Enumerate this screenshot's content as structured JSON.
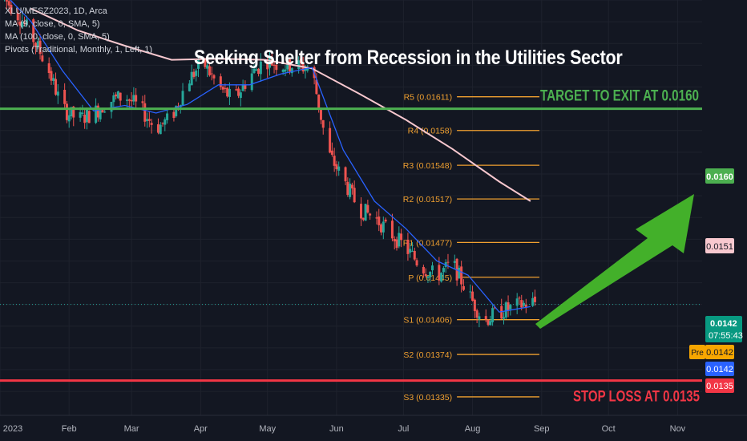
{
  "legend": {
    "symbol_line": "XLU/MESZ2023, 1D, Arca",
    "ma_fast": "MA (9, close, 0, SMA, 5)",
    "ma_slow": "MA (100, close, 0, SMA, 5)",
    "pivots": "Pivots (Traditional, Monthly, 1, Left, 1)"
  },
  "colors": {
    "background": "#131722",
    "up": "#26a69a",
    "down": "#ef5350",
    "ma_fast": "#2962ff",
    "ma_slow": "#f8c8cf",
    "pivot": "#f0a030",
    "target": "#4caf50",
    "stop": "#f23645",
    "arrow": "#43b02a"
  },
  "chart_data": {
    "type": "candlestick",
    "title": "Seeking Shelter from Recession in the Utilities Sector",
    "x_ticks": [
      "2023",
      "Feb",
      "Mar",
      "Apr",
      "May",
      "Jun",
      "Jul",
      "Aug",
      "Sep",
      "Oct",
      "Nov"
    ],
    "x_range": [
      "2023-01-01",
      "2023-11-12"
    ],
    "y_range": [
      0.01318,
      0.017
    ],
    "grid": true,
    "pivots": [
      {
        "label": "R5 (0.01611)",
        "value": 0.01611
      },
      {
        "label": "R4 (0.0158)",
        "value": 0.0158
      },
      {
        "label": "R3 (0.01548)",
        "value": 0.01548
      },
      {
        "label": "R2 (0.01517)",
        "value": 0.01517
      },
      {
        "label": "R1 (0.01477)",
        "value": 0.01477
      },
      {
        "label": "P (0.01445)",
        "value": 0.01445
      },
      {
        "label": "S1 (0.01406)",
        "value": 0.01406
      },
      {
        "label": "S2 (0.01374)",
        "value": 0.01374
      },
      {
        "label": "S3 (0.01335)",
        "value": 0.01335
      }
    ],
    "target": {
      "label": "TARGET TO EXIT AT 0.0160",
      "value": 0.016,
      "badge": "0.0160"
    },
    "stop_loss": {
      "label": "STOP LOSS AT 0.0135",
      "value": 0.0135,
      "badge": "0.0135"
    },
    "ma_slow_badge": {
      "value": 0.0151,
      "label": "0.0151"
    },
    "last_price": {
      "value": 0.0142,
      "label": "0.0142",
      "countdown": "07:55:43"
    },
    "premarket": {
      "tag": "Pre",
      "label": "0.0142"
    },
    "close_badge": {
      "label": "0.0142"
    },
    "close_path": [
      [
        "2023-01-01",
        0.01705
      ],
      [
        "2023-01-08",
        0.0169
      ],
      [
        "2023-01-15",
        0.01668
      ],
      [
        "2023-01-22",
        0.0164
      ],
      [
        "2023-01-29",
        0.016
      ],
      [
        "2023-02-05",
        0.0159
      ],
      [
        "2023-02-12",
        0.01596
      ],
      [
        "2023-02-19",
        0.01607
      ],
      [
        "2023-02-26",
        0.01612
      ],
      [
        "2023-03-05",
        0.016
      ],
      [
        "2023-03-12",
        0.01582
      ],
      [
        "2023-03-19",
        0.01592
      ],
      [
        "2023-03-26",
        0.01625
      ],
      [
        "2023-04-02",
        0.01643
      ],
      [
        "2023-04-09",
        0.0162
      ],
      [
        "2023-04-16",
        0.01608
      ],
      [
        "2023-04-23",
        0.0163
      ],
      [
        "2023-04-30",
        0.01645
      ],
      [
        "2023-05-07",
        0.0164
      ],
      [
        "2023-05-14",
        0.0164
      ],
      [
        "2023-05-21",
        0.01636
      ],
      [
        "2023-05-28",
        0.0156
      ],
      [
        "2023-06-04",
        0.01535
      ],
      [
        "2023-06-11",
        0.01508
      ],
      [
        "2023-06-18",
        0.015
      ],
      [
        "2023-06-25",
        0.01486
      ],
      [
        "2023-07-02",
        0.01472
      ],
      [
        "2023-07-09",
        0.01455
      ],
      [
        "2023-07-16",
        0.01446
      ],
      [
        "2023-07-23",
        0.01458
      ],
      [
        "2023-07-30",
        0.0143
      ],
      [
        "2023-08-06",
        0.01405
      ],
      [
        "2023-08-13",
        0.01413
      ],
      [
        "2023-08-20",
        0.01418
      ],
      [
        "2023-08-27",
        0.01422
      ]
    ],
    "ma_fast_path": [
      [
        "2023-01-01",
        0.0171
      ],
      [
        "2023-01-15",
        0.0168
      ],
      [
        "2023-01-29",
        0.01635
      ],
      [
        "2023-02-12",
        0.01598
      ],
      [
        "2023-02-26",
        0.01603
      ],
      [
        "2023-03-12",
        0.01596
      ],
      [
        "2023-03-26",
        0.01604
      ],
      [
        "2023-04-09",
        0.01622
      ],
      [
        "2023-04-23",
        0.01622
      ],
      [
        "2023-05-07",
        0.01632
      ],
      [
        "2023-05-21",
        0.01638
      ],
      [
        "2023-06-04",
        0.01562
      ],
      [
        "2023-06-18",
        0.01515
      ],
      [
        "2023-07-02",
        0.0149
      ],
      [
        "2023-07-16",
        0.0146
      ],
      [
        "2023-07-30",
        0.01447
      ],
      [
        "2023-08-13",
        0.01413
      ],
      [
        "2023-08-27",
        0.01418
      ]
    ],
    "ma_slow_path": [
      [
        "2023-01-15",
        0.01692
      ],
      [
        "2023-02-05",
        0.01672
      ],
      [
        "2023-02-26",
        0.01658
      ],
      [
        "2023-03-19",
        0.01645
      ],
      [
        "2023-04-09",
        0.01646
      ],
      [
        "2023-04-30",
        0.01645
      ],
      [
        "2023-05-21",
        0.01637
      ],
      [
        "2023-06-11",
        0.01614
      ],
      [
        "2023-07-02",
        0.0159
      ],
      [
        "2023-07-23",
        0.01563
      ],
      [
        "2023-08-13",
        0.01533
      ],
      [
        "2023-08-27",
        0.01515
      ]
    ]
  }
}
